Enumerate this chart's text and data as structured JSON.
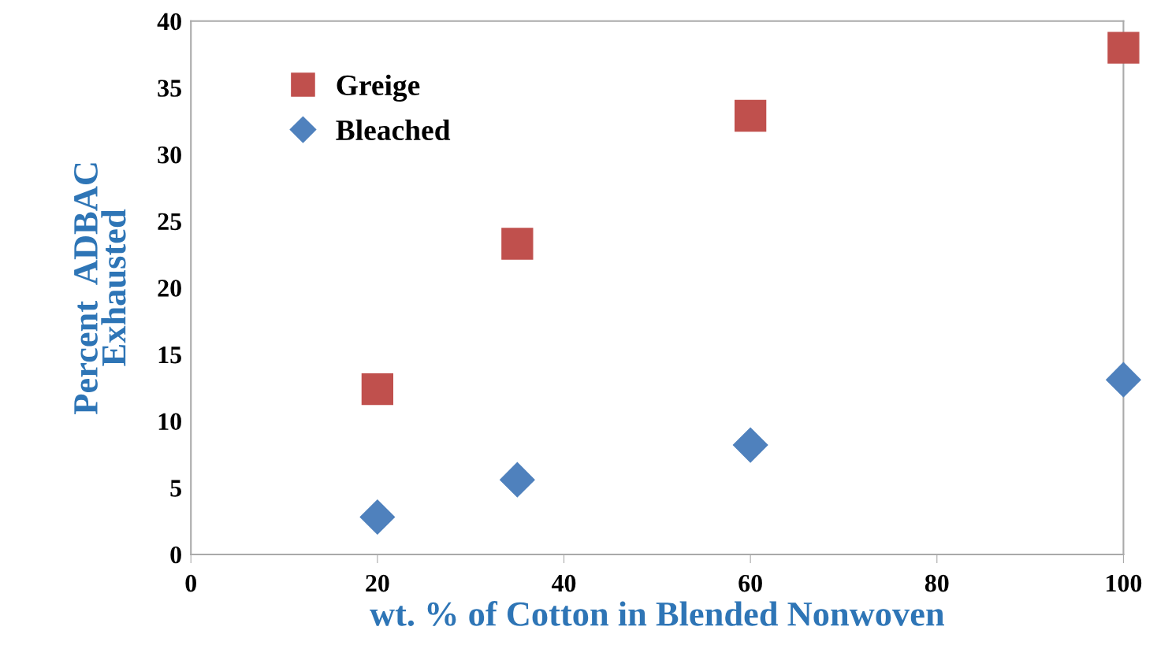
{
  "chart_data": {
    "type": "scatter",
    "xlabel": "wt. % of Cotton in Blended Nonwoven",
    "ylabel": "Percent  ADBAC\nExhausted",
    "x": [
      20,
      35,
      60,
      100
    ],
    "series": [
      {
        "name": "Greige",
        "color": "#c0504d",
        "marker": "square",
        "values": [
          12.4,
          23.3,
          32.9,
          38.0
        ]
      },
      {
        "name": "Bleached",
        "color": "#4f81bd",
        "marker": "diamond",
        "values": [
          2.8,
          5.6,
          8.2,
          13.1
        ]
      }
    ],
    "xlim": [
      0,
      100
    ],
    "xticks": [
      0,
      20,
      40,
      60,
      80,
      100
    ],
    "ylim": [
      0,
      40
    ],
    "yticks": [
      0,
      5,
      10,
      15,
      20,
      25,
      30,
      35,
      40
    ],
    "grid": false,
    "legend": "top left"
  }
}
